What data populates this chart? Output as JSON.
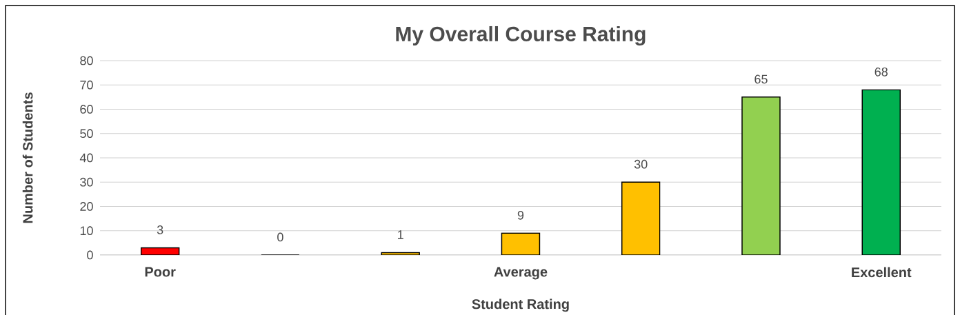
{
  "chart_data": {
    "type": "bar",
    "title": "My Overall Course Rating",
    "xlabel": "Student Rating",
    "ylabel": "Number of Students",
    "categories": [
      "Poor",
      null,
      null,
      "Average",
      null,
      null,
      "Excellent"
    ],
    "values": [
      3,
      0,
      1,
      9,
      30,
      65,
      68
    ],
    "colors": [
      "#ff0000",
      "#ffc000",
      "#ffc000",
      "#ffc000",
      "#ffc000",
      "#92d050",
      "#00b050"
    ],
    "ylim": [
      0,
      80
    ],
    "yticks": [
      0,
      10,
      20,
      30,
      40,
      50,
      60,
      70,
      80
    ],
    "grid": "y",
    "data_labels": true
  }
}
